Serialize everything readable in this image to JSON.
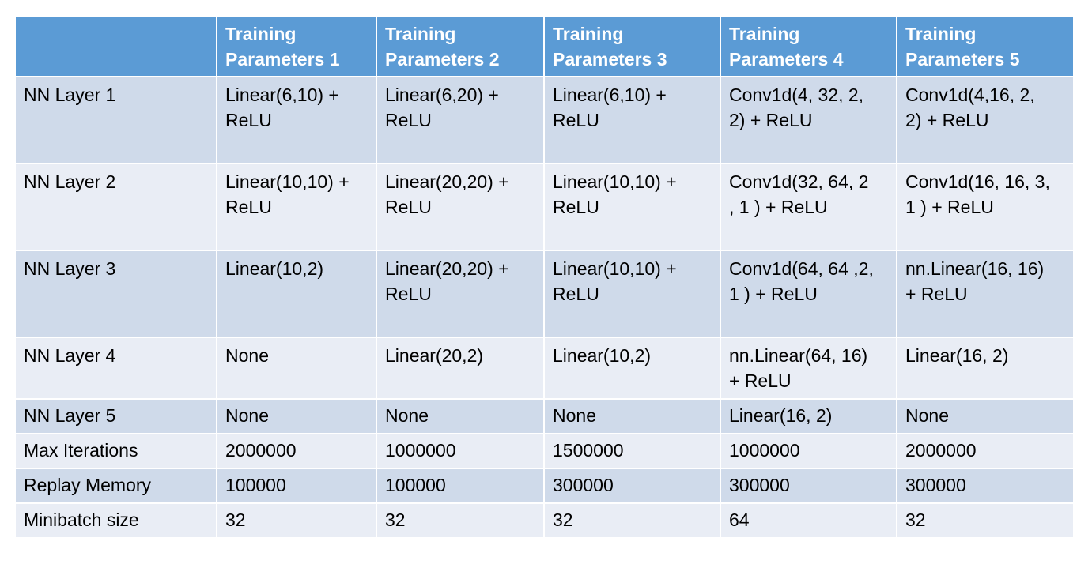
{
  "table": {
    "header": [
      "",
      "Training\nParameters 1",
      "Training\nParameters 2",
      "Training\nParameters 3",
      "Training\nParameters 4",
      "Training\nParameters 5"
    ],
    "rows": [
      [
        "NN Layer 1",
        "Linear(6,10) +\nReLU",
        "Linear(6,20) +\nReLU",
        "Linear(6,10) +\nReLU",
        "Conv1d(4, 32, 2,\n2) + ReLU",
        "Conv1d(4,16, 2,\n2) + ReLU"
      ],
      [
        "NN Layer 2",
        "Linear(10,10) +\nReLU",
        "Linear(20,20) +\nReLU",
        "Linear(10,10) +\nReLU",
        "Conv1d(32, 64, 2\n, 1 ) + ReLU",
        "Conv1d(16, 16, 3,\n1 ) + ReLU"
      ],
      [
        "NN Layer 3",
        "Linear(10,2)",
        "Linear(20,20) +\nReLU",
        "Linear(10,10) +\nReLU",
        "Conv1d(64, 64 ,2,\n1 ) + ReLU",
        "nn.Linear(16, 16)\n+ ReLU"
      ],
      [
        "NN Layer 4",
        "None",
        "Linear(20,2)",
        "Linear(10,2)",
        "nn.Linear(64, 16)\n+ ReLU",
        "Linear(16, 2)"
      ],
      [
        "NN Layer 5",
        "None",
        "None",
        "None",
        "Linear(16, 2)",
        "None"
      ],
      [
        "Max Iterations",
        "2000000",
        "1000000",
        "1500000",
        "1000000",
        "2000000"
      ],
      [
        "Replay Memory",
        "100000",
        "100000",
        "300000",
        "300000",
        "300000"
      ],
      [
        "Minibatch size",
        "32",
        "32",
        "32",
        "64",
        "32"
      ]
    ]
  }
}
